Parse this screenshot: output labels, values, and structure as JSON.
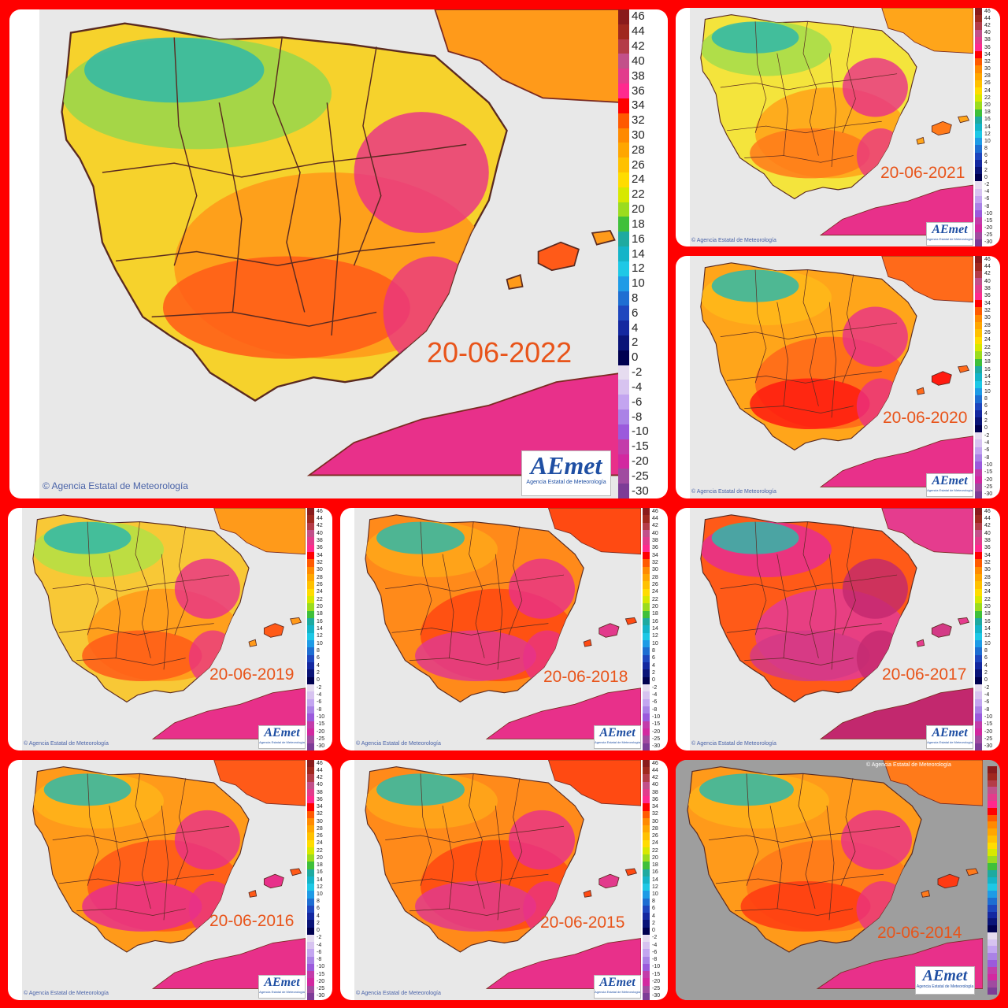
{
  "scale_labels": [
    "46",
    "44",
    "42",
    "40",
    "38",
    "36",
    "34",
    "32",
    "30",
    "28",
    "26",
    "24",
    "22",
    "20",
    "18",
    "16",
    "14",
    "12",
    "10",
    "8",
    "6",
    "4",
    "2",
    "0",
    "-2",
    "-4",
    "-6",
    "-8",
    "-10",
    "-15",
    "-20",
    "-25",
    "-30"
  ],
  "scale_colors": [
    "#8a1b1b",
    "#a0281e",
    "#b43c48",
    "#c2508a",
    "#e23c8c",
    "#ff2a8e",
    "#ff0000",
    "#ff5a00",
    "#ff8a00",
    "#ffa600",
    "#ffc100",
    "#ffdc00",
    "#d7e800",
    "#9bdc1e",
    "#3fc03a",
    "#1eaaa0",
    "#14b4c8",
    "#1ec8e6",
    "#1e9be6",
    "#1e6ed2",
    "#1e46be",
    "#1428a0",
    "#0a1478",
    "#000050",
    "#e6dcf0",
    "#d7c3f0",
    "#c3a5f0",
    "#aa82e6",
    "#9b5adc",
    "#c33caa",
    "#d228a0",
    "#a04ba0",
    "#7d3c96"
  ],
  "credit": "Agencia Estatal de Meteorología",
  "logo_title": "AEmet",
  "logo_sub": "Agencia Estatal de Meteorología",
  "maps": [
    {
      "date": "20-06-2022",
      "palette": [
        "#f6d22c",
        "#9cd64a",
        "#2fb9a9",
        "#ff9a1a",
        "#ff5a18",
        "#e8308a"
      ]
    },
    {
      "date": "20-06-2021",
      "palette": [
        "#f4e43c",
        "#a9dd4a",
        "#2fb9a9",
        "#ffa51a",
        "#ff7a1a",
        "#e8308a"
      ]
    },
    {
      "date": "20-06-2020",
      "palette": [
        "#ffa51a",
        "#ffb81a",
        "#2fb9a9",
        "#ff6a1a",
        "#ff1a10",
        "#e8308a"
      ]
    },
    {
      "date": "20-06-2019",
      "palette": [
        "#f8c836",
        "#b6df44",
        "#2fb9a9",
        "#ff9a1a",
        "#ff5a18",
        "#e8308a"
      ]
    },
    {
      "date": "20-06-2018",
      "palette": [
        "#ff8a1a",
        "#ffa51a",
        "#2fb9a9",
        "#ff4a12",
        "#e23a8c",
        "#e8308a"
      ]
    },
    {
      "date": "20-06-2017",
      "palette": [
        "#ff5a18",
        "#e8308a",
        "#2fb9a9",
        "#e53c8e",
        "#d33a86",
        "#c2286e"
      ]
    },
    {
      "date": "20-06-2016",
      "palette": [
        "#ff9a1a",
        "#ffb21a",
        "#2fb9a9",
        "#ff5a18",
        "#e8308a",
        "#e8308a"
      ]
    },
    {
      "date": "20-06-2015",
      "palette": [
        "#ff8a1a",
        "#ffa51a",
        "#2fb9a9",
        "#ff4a12",
        "#e23a8c",
        "#e8308a"
      ]
    },
    {
      "date": "20-06-2014",
      "palette": [
        "#ff9a1a",
        "#ffb01a",
        "#2fb9a9",
        "#ff7a1a",
        "#ff3a12",
        "#e8308a"
      ]
    }
  ]
}
